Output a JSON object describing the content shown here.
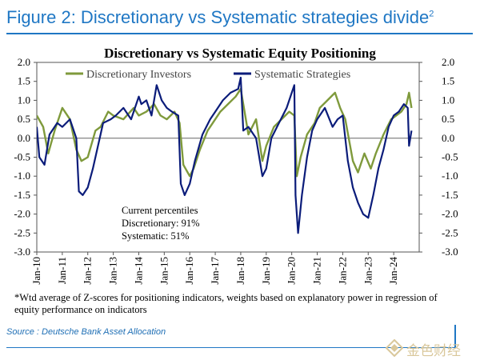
{
  "figure_title": "Figure 2: Discretionary vs Systematic strategies divide",
  "figure_title_sup": "2",
  "footnote": "*Wtd average of Z-scores for positioning indicators, weights based on explanatory power in regression of equity performance on indicators",
  "source": "Source : Deutsche Bank Asset Allocation",
  "watermark": "金色财经",
  "colors": {
    "discretionary": "#7f9a3c",
    "systematic": "#0b1c7a",
    "accent": "#1f77c4"
  },
  "chart_data": {
    "type": "line",
    "title": "Discretionary  vs Systematic Equity Positioning",
    "ylim": [
      -3.0,
      2.0
    ],
    "yticks": [
      "2.0",
      "1.5",
      "1.0",
      "0.5",
      "0.0",
      "-0.5",
      "-1.0",
      "-1.5",
      "-2.0",
      "-2.5",
      "-3.0"
    ],
    "xticks": [
      "Jan-10",
      "Jan-11",
      "Jan-12",
      "Jan-13",
      "Jan-14",
      "Jan-15",
      "Jan-16",
      "Jan-17",
      "Jan-18",
      "Jan-19",
      "Jan-20",
      "Jan-21",
      "Jan-22",
      "Jan-23",
      "Jan-24"
    ],
    "legend_position": "top",
    "annotation": [
      "Current percentiles",
      "Discretionary: 91%",
      "Systematic: 51%"
    ],
    "series": [
      {
        "name": "Discretionary Investors",
        "color": "#7f9a3c",
        "x": [
          2010.0,
          2010.25,
          2010.45,
          2010.7,
          2011.0,
          2011.3,
          2011.55,
          2011.75,
          2012.0,
          2012.3,
          2012.5,
          2012.8,
          2013.0,
          2013.4,
          2013.8,
          2014.0,
          2014.3,
          2014.6,
          2014.85,
          2015.1,
          2015.4,
          2015.6,
          2015.75,
          2016.0,
          2016.15,
          2016.4,
          2016.7,
          2016.9,
          2017.2,
          2017.5,
          2017.8,
          2018.0,
          2018.1,
          2018.3,
          2018.6,
          2018.85,
          2019.0,
          2019.3,
          2019.6,
          2019.9,
          2020.1,
          2020.2,
          2020.35,
          2020.6,
          2020.9,
          2021.1,
          2021.4,
          2021.7,
          2021.9,
          2022.1,
          2022.4,
          2022.6,
          2022.85,
          2023.1,
          2023.3,
          2023.6,
          2023.9,
          2024.1,
          2024.3,
          2024.5,
          2024.6,
          2024.7
        ],
        "values": [
          0.6,
          0.3,
          -0.4,
          0.2,
          0.8,
          0.5,
          -0.3,
          -0.6,
          -0.5,
          0.2,
          0.3,
          0.7,
          0.6,
          0.5,
          0.8,
          0.6,
          0.7,
          0.9,
          0.6,
          0.5,
          0.7,
          0.4,
          -0.7,
          -1.0,
          -0.8,
          -0.3,
          0.2,
          0.4,
          0.7,
          0.9,
          1.1,
          1.3,
          0.9,
          0.1,
          0.5,
          -0.6,
          -0.2,
          0.3,
          0.5,
          0.7,
          0.6,
          -1.0,
          -0.5,
          0.1,
          0.4,
          0.8,
          1.0,
          1.2,
          0.8,
          0.5,
          -0.6,
          -0.9,
          -0.4,
          -0.8,
          -0.4,
          0.1,
          0.5,
          0.6,
          0.7,
          0.9,
          1.2,
          0.8
        ]
      },
      {
        "name": "Systematic Strategies",
        "color": "#0b1c7a",
        "x": [
          2010.0,
          2010.1,
          2010.3,
          2010.5,
          2010.8,
          2011.0,
          2011.3,
          2011.55,
          2011.65,
          2011.8,
          2012.0,
          2012.2,
          2012.4,
          2012.6,
          2012.9,
          2013.1,
          2013.4,
          2013.7,
          2014.0,
          2014.1,
          2014.3,
          2014.5,
          2014.7,
          2014.9,
          2015.1,
          2015.3,
          2015.55,
          2015.65,
          2015.8,
          2016.0,
          2016.2,
          2016.5,
          2016.8,
          2017.0,
          2017.3,
          2017.6,
          2017.9,
          2018.0,
          2018.1,
          2018.3,
          2018.6,
          2018.85,
          2019.0,
          2019.2,
          2019.5,
          2019.8,
          2020.0,
          2020.1,
          2020.15,
          2020.25,
          2020.4,
          2020.6,
          2020.8,
          2021.0,
          2021.3,
          2021.6,
          2021.8,
          2022.0,
          2022.2,
          2022.4,
          2022.6,
          2022.8,
          2023.0,
          2023.2,
          2023.4,
          2023.6,
          2023.8,
          2024.0,
          2024.2,
          2024.4,
          2024.55,
          2024.6,
          2024.7
        ],
        "values": [
          0.3,
          -0.5,
          -0.7,
          0.1,
          0.4,
          0.3,
          0.5,
          0.0,
          -1.4,
          -1.5,
          -1.3,
          -0.8,
          -0.2,
          0.4,
          0.5,
          0.6,
          0.8,
          0.5,
          1.1,
          0.9,
          1.0,
          0.6,
          1.4,
          1.0,
          0.8,
          0.7,
          0.6,
          -1.2,
          -1.5,
          -1.2,
          -0.6,
          0.1,
          0.5,
          0.7,
          1.0,
          1.2,
          1.3,
          1.6,
          0.2,
          0.3,
          0.0,
          -1.0,
          -0.8,
          0.0,
          0.4,
          0.8,
          1.2,
          1.4,
          -1.5,
          -2.5,
          -1.5,
          -0.5,
          0.2,
          0.5,
          0.8,
          0.3,
          0.5,
          0.6,
          -0.6,
          -1.3,
          -1.7,
          -2.0,
          -2.1,
          -1.5,
          -0.8,
          -0.3,
          0.3,
          0.6,
          0.7,
          0.9,
          0.8,
          -0.2,
          0.2
        ]
      }
    ]
  }
}
